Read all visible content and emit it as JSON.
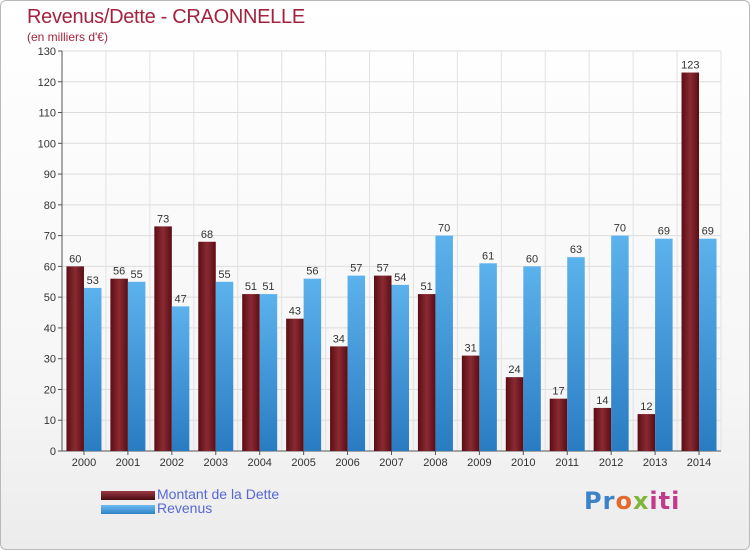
{
  "chart_data": {
    "type": "bar",
    "title": "Revenus/Dette - CRAONNELLE",
    "subtitle": "(en milliers d'€)",
    "categories": [
      "2000",
      "2001",
      "2002",
      "2003",
      "2004",
      "2005",
      "2006",
      "2007",
      "2008",
      "2009",
      "2010",
      "2011",
      "2012",
      "2013",
      "2014"
    ],
    "series": [
      {
        "name": "Montant de la Dette",
        "color": "#7a1a22",
        "values": [
          60,
          56,
          73,
          68,
          51,
          43,
          34,
          57,
          51,
          31,
          24,
          17,
          14,
          12,
          123
        ]
      },
      {
        "name": "Revenus",
        "color": "#4aa2e0",
        "values": [
          53,
          55,
          47,
          55,
          51,
          56,
          57,
          54,
          70,
          61,
          60,
          63,
          70,
          69,
          69
        ]
      }
    ],
    "ylim": [
      0,
      130
    ],
    "yticks": [
      0,
      10,
      20,
      30,
      40,
      50,
      60,
      70,
      80,
      90,
      100,
      110,
      120,
      130
    ],
    "grid": true,
    "legend_position": "bottom-left"
  },
  "logo": {
    "letters": [
      "Pr",
      "o",
      "x",
      "iti"
    ]
  }
}
